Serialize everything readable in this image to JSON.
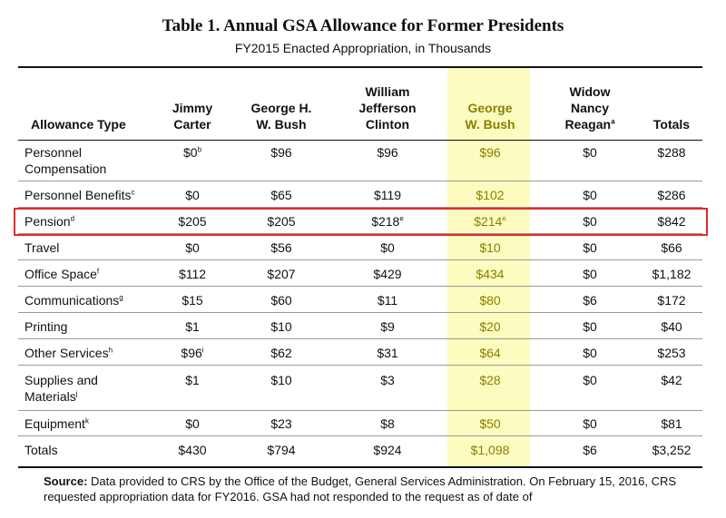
{
  "title": "Table 1. Annual GSA Allowance for Former Presidents",
  "subtitle": "FY2015 Enacted Appropriation, in Thousands",
  "columns": [
    {
      "label": "Allowance Type",
      "note": ""
    },
    {
      "label": "Jimmy\nCarter",
      "note": ""
    },
    {
      "label": "George H.\nW. Bush",
      "note": ""
    },
    {
      "label": "William\nJefferson\nClinton",
      "note": ""
    },
    {
      "label": "George\nW. Bush",
      "note": ""
    },
    {
      "label": "Widow\nNancy\nReagan",
      "note": "a"
    },
    {
      "label": "Totals",
      "note": ""
    }
  ],
  "rows": [
    {
      "label": "Personnel\nCompensation",
      "note": "",
      "cells": [
        {
          "v": "$0",
          "n": "b"
        },
        {
          "v": "$96",
          "n": ""
        },
        {
          "v": "$96",
          "n": ""
        },
        {
          "v": "$96",
          "n": ""
        },
        {
          "v": "$0",
          "n": ""
        },
        {
          "v": "$288",
          "n": ""
        }
      ]
    },
    {
      "label": "Personnel Benefits",
      "note": "c",
      "cells": [
        {
          "v": "$0",
          "n": ""
        },
        {
          "v": "$65",
          "n": ""
        },
        {
          "v": "$119",
          "n": ""
        },
        {
          "v": "$102",
          "n": ""
        },
        {
          "v": "$0",
          "n": ""
        },
        {
          "v": "$286",
          "n": ""
        }
      ]
    },
    {
      "label": "Pension",
      "note": "d",
      "cells": [
        {
          "v": "$205",
          "n": ""
        },
        {
          "v": "$205",
          "n": ""
        },
        {
          "v": "$218",
          "n": "e"
        },
        {
          "v": "$214",
          "n": "e"
        },
        {
          "v": "$0",
          "n": ""
        },
        {
          "v": "$842",
          "n": ""
        }
      ]
    },
    {
      "label": "Travel",
      "note": "",
      "cells": [
        {
          "v": "$0",
          "n": ""
        },
        {
          "v": "$56",
          "n": ""
        },
        {
          "v": "$0",
          "n": ""
        },
        {
          "v": "$10",
          "n": ""
        },
        {
          "v": "$0",
          "n": ""
        },
        {
          "v": "$66",
          "n": ""
        }
      ]
    },
    {
      "label": "Office Space",
      "note": "f",
      "cells": [
        {
          "v": "$112",
          "n": ""
        },
        {
          "v": "$207",
          "n": ""
        },
        {
          "v": "$429",
          "n": ""
        },
        {
          "v": "$434",
          "n": ""
        },
        {
          "v": "$0",
          "n": ""
        },
        {
          "v": "$1,182",
          "n": ""
        }
      ]
    },
    {
      "label": "Communications",
      "note": "g",
      "cells": [
        {
          "v": "$15",
          "n": ""
        },
        {
          "v": "$60",
          "n": ""
        },
        {
          "v": "$11",
          "n": ""
        },
        {
          "v": "$80",
          "n": ""
        },
        {
          "v": "$6",
          "n": ""
        },
        {
          "v": "$172",
          "n": ""
        }
      ]
    },
    {
      "label": "Printing",
      "note": "",
      "cells": [
        {
          "v": "$1",
          "n": ""
        },
        {
          "v": "$10",
          "n": ""
        },
        {
          "v": "$9",
          "n": ""
        },
        {
          "v": "$20",
          "n": ""
        },
        {
          "v": "$0",
          "n": ""
        },
        {
          "v": "$40",
          "n": ""
        }
      ]
    },
    {
      "label": "Other Services",
      "note": "h",
      "cells": [
        {
          "v": "$96",
          "n": "i"
        },
        {
          "v": "$62",
          "n": ""
        },
        {
          "v": "$31",
          "n": ""
        },
        {
          "v": "$64",
          "n": ""
        },
        {
          "v": "$0",
          "n": ""
        },
        {
          "v": "$253",
          "n": ""
        }
      ]
    },
    {
      "label": "Supplies and\nMaterials",
      "note": "j",
      "cells": [
        {
          "v": "$1",
          "n": ""
        },
        {
          "v": "$10",
          "n": ""
        },
        {
          "v": "$3",
          "n": ""
        },
        {
          "v": "$28",
          "n": ""
        },
        {
          "v": "$0",
          "n": ""
        },
        {
          "v": "$42",
          "n": ""
        }
      ]
    },
    {
      "label": "Equipment",
      "note": "k",
      "cells": [
        {
          "v": "$0",
          "n": ""
        },
        {
          "v": "$23",
          "n": ""
        },
        {
          "v": "$8",
          "n": ""
        },
        {
          "v": "$50",
          "n": ""
        },
        {
          "v": "$0",
          "n": ""
        },
        {
          "v": "$81",
          "n": ""
        }
      ]
    },
    {
      "label": "Totals",
      "note": "",
      "cells": [
        {
          "v": "$430",
          "n": ""
        },
        {
          "v": "$794",
          "n": ""
        },
        {
          "v": "$924",
          "n": ""
        },
        {
          "v": "$1,098",
          "n": ""
        },
        {
          "v": "$6",
          "n": ""
        },
        {
          "v": "$3,252",
          "n": ""
        }
      ]
    }
  ],
  "source": {
    "label": "Source:",
    "text": "Data provided to CRS by the Office of the Budget, General Services Administration. On February 15, 2016, CRS requested appropriation data for FY2016. GSA had not responded to the request as of date of"
  },
  "colors": {
    "highlight": "#fcfcc1",
    "gwb_text": "#8a7f00",
    "red_box": "#e22a2a"
  }
}
